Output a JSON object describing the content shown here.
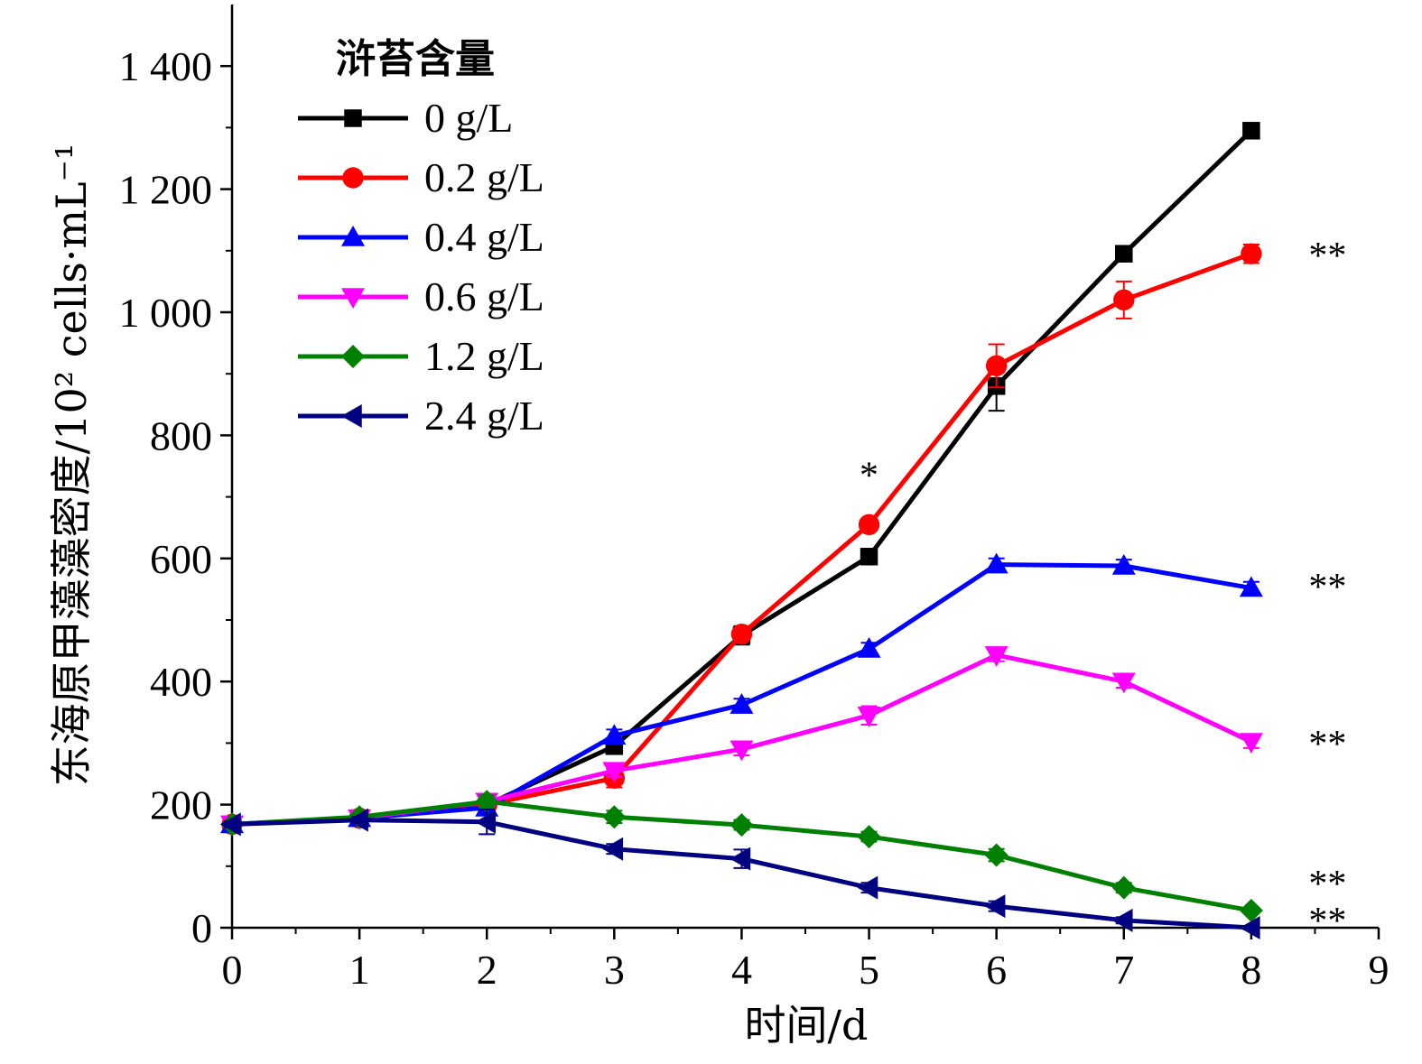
{
  "chart_data": {
    "type": "line",
    "xlabel": "时间/d",
    "ylabel": "东海原甲藻藻密度/10² cells·mL⁻¹",
    "xlim": [
      0,
      9
    ],
    "ylim": [
      0,
      1500
    ],
    "x_ticks": [
      "0",
      "1",
      "2",
      "3",
      "4",
      "5",
      "6",
      "7",
      "8",
      "9"
    ],
    "y_ticks": [
      "0",
      "200",
      "400",
      "600",
      "800",
      "1 000",
      "1 200",
      "1 400"
    ],
    "grid": false,
    "legend": {
      "title": "浒苔含量",
      "placement": "top-left"
    },
    "x": [
      0,
      1,
      2,
      3,
      4,
      5,
      6,
      7,
      8
    ],
    "series": [
      {
        "name": "0 g/L",
        "color": "#000000",
        "marker": "square",
        "values": [
          168,
          178,
          200,
          295,
          475,
          603,
          880,
          1095,
          1295
        ],
        "error": [
          5,
          5,
          8,
          12,
          15,
          10,
          40,
          10,
          10
        ]
      },
      {
        "name": "0.2 g/L",
        "color": "#ff0000",
        "marker": "circle",
        "values": [
          168,
          178,
          200,
          243,
          477,
          655,
          913,
          1020,
          1095
        ],
        "error": [
          5,
          5,
          8,
          15,
          10,
          10,
          35,
          30,
          15
        ]
      },
      {
        "name": "0.4 g/L",
        "color": "#0000ff",
        "marker": "triangle-up",
        "values": [
          168,
          178,
          195,
          312,
          362,
          453,
          590,
          588,
          552
        ],
        "error": [
          5,
          5,
          8,
          10,
          10,
          10,
          10,
          10,
          10
        ]
      },
      {
        "name": "0.6 g/L",
        "color": "#ff00ff",
        "marker": "triangle-down",
        "values": [
          168,
          178,
          205,
          255,
          290,
          345,
          443,
          400,
          302
        ],
        "error": [
          5,
          5,
          8,
          10,
          10,
          15,
          10,
          10,
          10
        ]
      },
      {
        "name": "1.2 g/L",
        "color": "#008000",
        "marker": "diamond",
        "values": [
          168,
          180,
          205,
          180,
          167,
          148,
          118,
          65,
          28
        ],
        "error": [
          5,
          5,
          10,
          10,
          8,
          8,
          10,
          8,
          5
        ]
      },
      {
        "name": "2.4 g/L",
        "color": "#000080",
        "marker": "triangle-left",
        "values": [
          168,
          175,
          172,
          128,
          112,
          65,
          35,
          12,
          0
        ],
        "error": [
          5,
          5,
          20,
          8,
          15,
          8,
          8,
          5,
          3
        ]
      }
    ],
    "annotations": [
      {
        "text": "*",
        "x": 5,
        "y": 738
      },
      {
        "text": "**",
        "x": 8.4,
        "y": 1095
      },
      {
        "text": "**",
        "x": 8.4,
        "y": 557
      },
      {
        "text": "**",
        "x": 8.4,
        "y": 302
      },
      {
        "text": "**",
        "x": 8.4,
        "y": 75
      },
      {
        "text": "**",
        "x": 8.4,
        "y": 15
      }
    ]
  }
}
